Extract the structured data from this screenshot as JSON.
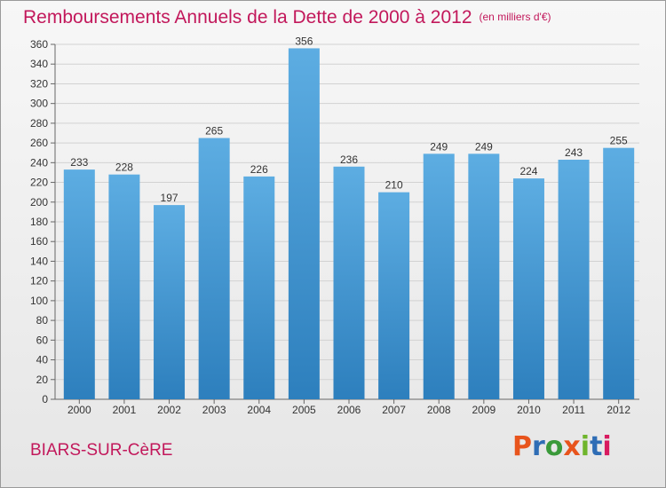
{
  "header": {
    "title": "Remboursements Annuels de la Dette de 2000 à 2012",
    "unit": "(en milliers d'€)"
  },
  "footer": {
    "commune": "BIARS-SUR-CèRE",
    "logo": "Proxiti",
    "logo_letters": [
      "P",
      "r",
      "o",
      "x",
      "i",
      "t",
      "i"
    ],
    "logo_colors": [
      "#e8541c",
      "#2f6db5",
      "#3a9a3a",
      "#e8541c",
      "#6fb52c",
      "#2f6db5",
      "#d81b60"
    ]
  },
  "colors": {
    "bar_light": "#5dade2",
    "bar_dark": "#2d7fbd",
    "accent": "#c2185b"
  },
  "chart_data": {
    "type": "bar",
    "categories": [
      "2000",
      "2001",
      "2002",
      "2003",
      "2004",
      "2005",
      "2006",
      "2007",
      "2008",
      "2009",
      "2010",
      "2011",
      "2012"
    ],
    "values": [
      233,
      228,
      197,
      265,
      226,
      356,
      236,
      210,
      249,
      249,
      224,
      243,
      255
    ],
    "ylim": [
      0,
      360
    ],
    "yticks": [
      0,
      20,
      40,
      60,
      80,
      100,
      120,
      140,
      160,
      180,
      200,
      220,
      240,
      260,
      280,
      300,
      320,
      340,
      360
    ],
    "grid": true,
    "xlabel": "",
    "ylabel": ""
  }
}
